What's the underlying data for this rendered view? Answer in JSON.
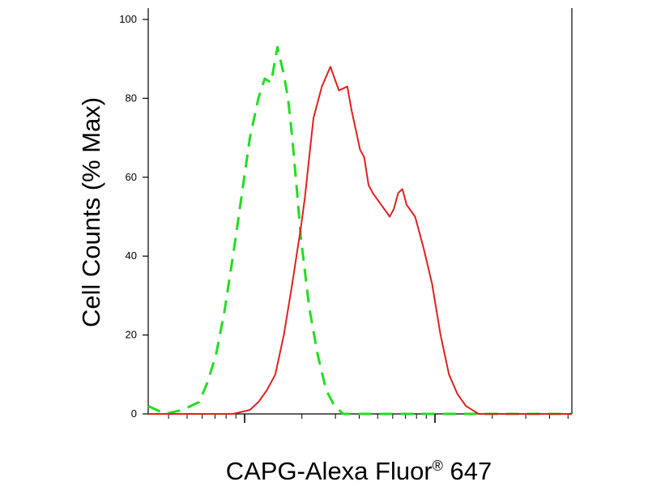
{
  "chart_data": {
    "type": "line",
    "title": "",
    "xlabel_main": "CAPG-Alexa Fluor",
    "xlabel_super": "®",
    "xlabel_tail": " 647",
    "ylabel": "Cell Counts (% Max)",
    "y_ticks": [
      "0",
      "20",
      "40",
      "60",
      "80",
      "100"
    ],
    "y_tick_values": [
      0,
      20,
      40,
      60,
      80,
      100
    ],
    "ylim": [
      0,
      100
    ],
    "xlim": [
      0,
      100
    ],
    "x_scale": "log",
    "x_tick_labels_visible": false,
    "grid": false,
    "legend": "none",
    "series": [
      {
        "color": "#22dd22",
        "line_style": "dashed",
        "x": [
          0,
          4,
          8,
          12,
          14,
          16,
          18,
          20,
          22,
          24,
          26,
          27.5,
          29,
          30.5,
          32,
          33,
          34,
          35,
          36,
          38,
          40,
          42,
          44,
          46,
          48,
          50,
          54,
          60,
          70,
          80,
          90,
          100
        ],
        "y": [
          2,
          0,
          1,
          3,
          8,
          15,
          26,
          40,
          55,
          70,
          80,
          85,
          84,
          93,
          86,
          80,
          70,
          58,
          45,
          27,
          15,
          6,
          2,
          0,
          0,
          0,
          0,
          0,
          0,
          0,
          0,
          0
        ]
      },
      {
        "color": "#e02020",
        "line_style": "solid",
        "x": [
          0,
          10,
          20,
          24,
          26,
          28,
          30,
          32,
          34,
          35,
          36,
          37,
          38,
          39,
          41,
          43,
          45,
          47,
          48,
          49,
          50,
          51,
          52,
          53,
          55,
          57,
          58,
          59,
          60,
          61,
          63,
          65,
          67,
          69,
          71,
          73,
          75,
          78,
          81,
          85,
          90,
          100
        ],
        "y": [
          0,
          0,
          0,
          1,
          3,
          6,
          10,
          20,
          33,
          40,
          47,
          55,
          65,
          75,
          83,
          88,
          82,
          83,
          77,
          72,
          67,
          65,
          58,
          56,
          53,
          50,
          52,
          56,
          57,
          53,
          50,
          42,
          33,
          20,
          10,
          5,
          2,
          0,
          0,
          0,
          0,
          0
        ]
      }
    ]
  }
}
